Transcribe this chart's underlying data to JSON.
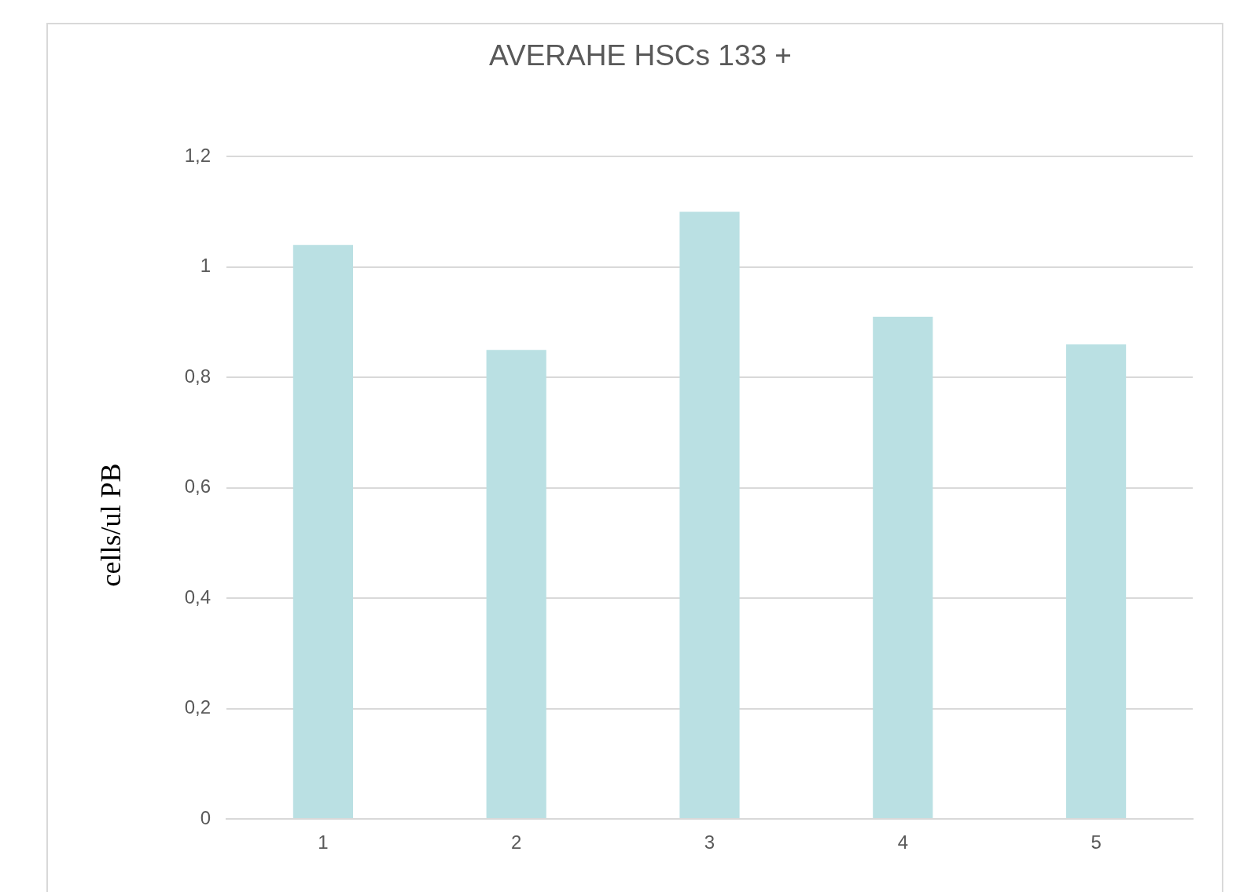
{
  "chart_data": {
    "type": "bar",
    "title": "AVERAHE HSCs 133 +",
    "ylabel": "cells/ul PB",
    "categories": [
      "1",
      "2",
      "3",
      "4",
      "5"
    ],
    "values": [
      1.04,
      0.85,
      1.1,
      0.91,
      0.86
    ],
    "color": "#bae0e3",
    "ylim": [
      0,
      1.2
    ],
    "yticks": [
      0,
      {
        "value": 0.2,
        "label": "0,2"
      },
      {
        "value": 0.4,
        "label": "0,4"
      },
      {
        "value": 0.6,
        "label": "0,6"
      },
      {
        "value": 0.8,
        "label": "0,8"
      },
      1,
      {
        "value": 1.2,
        "label": "1,2"
      }
    ],
    "grid": "y"
  }
}
